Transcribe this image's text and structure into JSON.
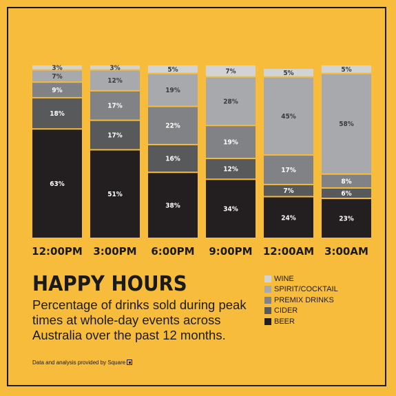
{
  "title": "HAPPY HOURS",
  "subtitle": "Percentage of drinks sold during peak times at whole-day events across Australia over the past 12 months.",
  "credit": "Data and analysis provided by Square",
  "chart_data": {
    "type": "bar",
    "stacked": true,
    "categories": [
      "12:00PM",
      "3:00PM",
      "6:00PM",
      "9:00PM",
      "12:00AM",
      "3:00AM"
    ],
    "series": [
      {
        "name": "BEER",
        "color": "#231f20",
        "values": [
          63,
          51,
          38,
          34,
          24,
          23
        ]
      },
      {
        "name": "CIDER",
        "color": "#58595b",
        "values": [
          18,
          17,
          16,
          12,
          7,
          6
        ]
      },
      {
        "name": "PREMIX DRINKS",
        "color": "#808285",
        "values": [
          9,
          17,
          22,
          19,
          17,
          8
        ]
      },
      {
        "name": "SPIRIT/COCKTAIL",
        "color": "#a7a9ac",
        "values": [
          7,
          12,
          19,
          28,
          45,
          58
        ]
      },
      {
        "name": "WINE",
        "color": "#d1d3d4",
        "values": [
          3,
          3,
          5,
          7,
          5,
          5
        ]
      }
    ],
    "ylim": [
      0,
      100
    ],
    "grid": false,
    "legend_position": "bottom-right",
    "label_suffix": "%"
  }
}
